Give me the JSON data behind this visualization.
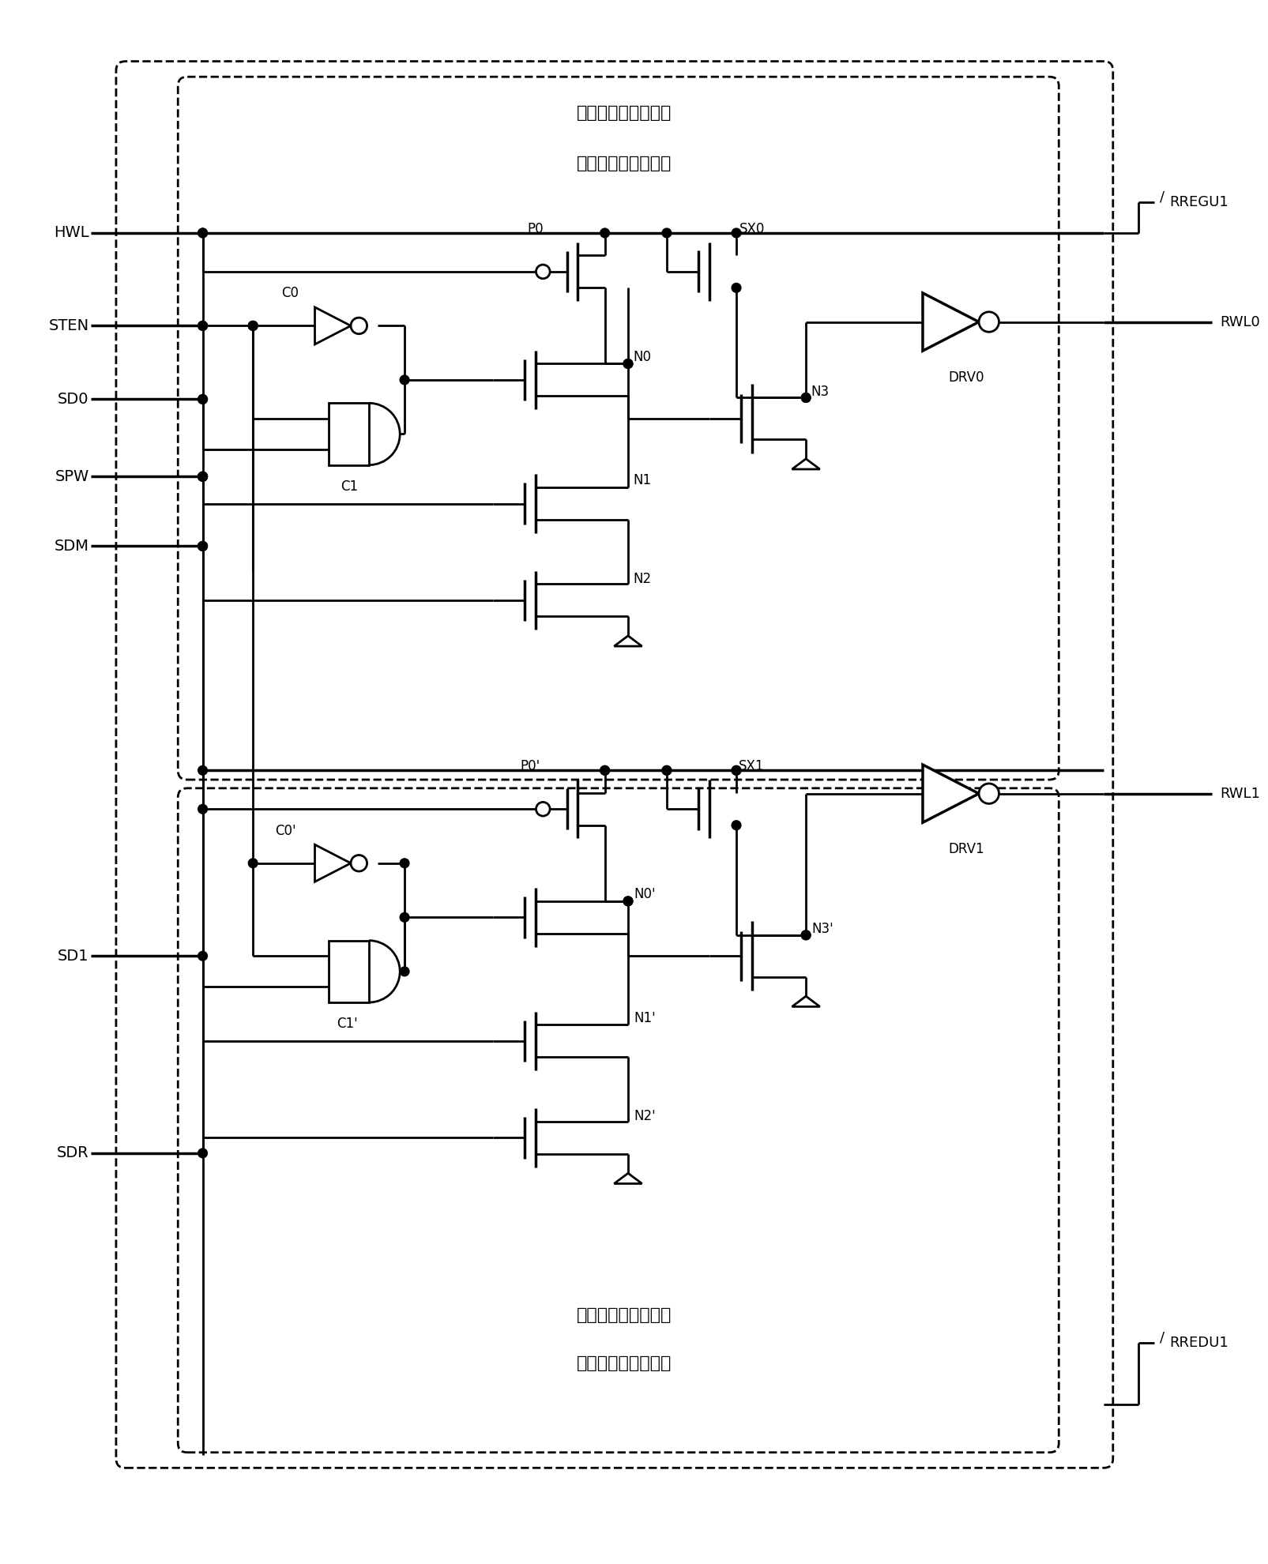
{
  "bg_color": "#ffffff",
  "line_color": "#000000",
  "lw": 2.0,
  "top_text1": "用于选择正常字线的",
  "top_text2": "参考字线的控制电路",
  "bot_text1": "用于选择冗余字线的",
  "bot_text2": "参考字线的控制电路",
  "left_labels": [
    "HWL",
    "STEN",
    "SD0",
    "SPW",
    "SDM",
    "SD1",
    "SDR"
  ],
  "right_labels": [
    "RREGU1",
    "RWL0",
    "RWL1",
    "RREDU1"
  ]
}
